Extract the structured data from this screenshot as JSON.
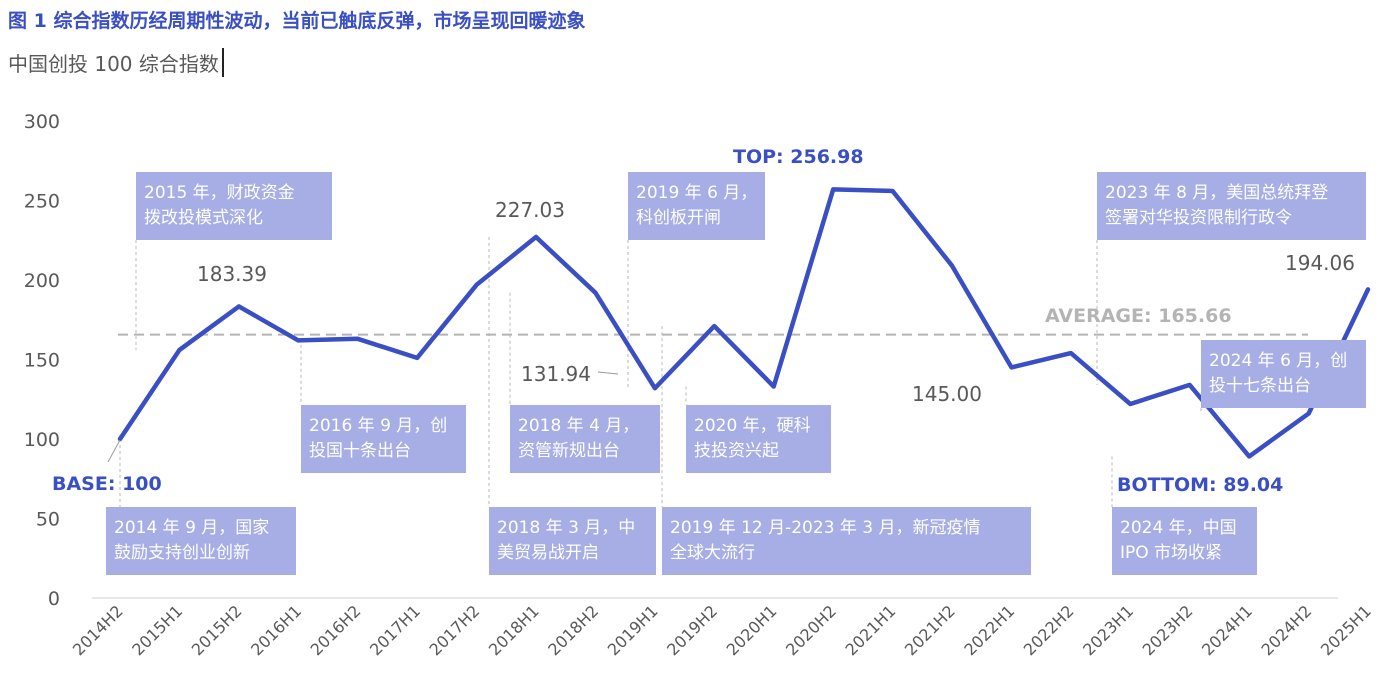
{
  "title": "图 1 综合指数历经周期性波动，当前已触底反弹，市场呈现回暖迹象",
  "subtitle": "中国创投 100 综合指数",
  "chart_data": {
    "type": "line",
    "categories": [
      "2014H2",
      "2015H1",
      "2015H2",
      "2016H1",
      "2016H2",
      "2017H1",
      "2017H2",
      "2018H1",
      "2018H2",
      "2019H1",
      "2019H2",
      "2020H1",
      "2020H2",
      "2021H1",
      "2021H2",
      "2022H1",
      "2022H2",
      "2023H1",
      "2023H2",
      "2024H1",
      "2024H2",
      "2025H1"
    ],
    "x": [
      "2014H2",
      "2014H2.5",
      "2015H1",
      "2015H1.5",
      "2015H2",
      "2015H2.5",
      "2016H1",
      "2016H1.5",
      "2016H2",
      "2016H2.5",
      "2017H1",
      "2017H1.5",
      "2017H2",
      "2017H2.5",
      "2018H1",
      "2018H1.5",
      "2018H2",
      "2018H2.5",
      "2019H1",
      "2019H1.5",
      "2019H2",
      "2019H2.5",
      "2020H1",
      "2020H1.5",
      "2020H2",
      "2020H2.5",
      "2021H1",
      "2021H1.5",
      "2021H2",
      "2021H2.5",
      "2022H1",
      "2022H1.5",
      "2022H2",
      "2022H2.5",
      "2023H1",
      "2023H1.5",
      "2023H2",
      "2023H2.5",
      "2024H1",
      "2024H1.5",
      "2024H2",
      "2024H2.5",
      "2025H1"
    ],
    "values": [
      100,
      156,
      183.39,
      162,
      163,
      151,
      197,
      227.03,
      192,
      131.94,
      171,
      133,
      256.98,
      256,
      209,
      145.0,
      154,
      122,
      134,
      89.04,
      116,
      194.06
    ],
    "series": [
      {
        "values": [
          100,
          156,
          183.39,
          162,
          163,
          151,
          197,
          227.03,
          192,
          131.94,
          171,
          133,
          256.98,
          256,
          209,
          145.0,
          154,
          122,
          134,
          89.04,
          116,
          194.06
        ]
      }
    ],
    "ylim": [
      0,
      300
    ],
    "yticks": [
      "0",
      "50",
      "100",
      "150",
      "200",
      "250",
      "300"
    ],
    "average": 165.66,
    "colors": {
      "line": "#3a4fc4",
      "average": "#b4b4b4",
      "box": "#a7aee6"
    },
    "data_labels": [
      {
        "idx": 2,
        "text": "183.39"
      },
      {
        "idx": 7,
        "text": "227.03"
      },
      {
        "idx": 9,
        "text": "131.94"
      },
      {
        "idx": 15,
        "text": "145.00"
      },
      {
        "idx": 21,
        "text": "194.06"
      }
    ],
    "highlight_labels": [
      {
        "idx": 0,
        "text": "BASE: 100"
      },
      {
        "idx": 12,
        "text": "TOP: 256.98"
      },
      {
        "idx": 19,
        "text": "BOTTOM: 89.04"
      }
    ],
    "average_label": "AVERAGE: 165.66",
    "annotations": [
      {
        "anchor": 0,
        "lines": [
          "2014 年 9 月，国家",
          "鼓励支持创业创新"
        ]
      },
      {
        "anchor": 1,
        "lines": [
          "2015 年，财政资金",
          "拨改投模式深化"
        ]
      },
      {
        "anchor": 4,
        "lines": [
          "2016 年 9 月，创",
          "投国十条出台"
        ]
      },
      {
        "anchor": 7,
        "lines": [
          "2018 年 3 月，中",
          "美贸易战开启"
        ]
      },
      {
        "anchor": 8,
        "lines": [
          "2018 年 4 月，",
          "资管新规出台"
        ]
      },
      {
        "anchor": 9,
        "lines": [
          "2019 年 6 月，",
          "科创板开闸"
        ]
      },
      {
        "anchor": 10,
        "lines": [
          "2019 年 12 月-2023 年 3 月，新冠疫情",
          "全球大流行"
        ]
      },
      {
        "anchor": 11,
        "lines": [
          "2020 年，硬科",
          "技投资兴起"
        ]
      },
      {
        "anchor": 18,
        "lines": [
          "2023 年 8 月，美国总统拜登",
          "签署对华投资限制行政令"
        ]
      },
      {
        "anchor": 19,
        "lines": [
          "2024 年，中国",
          "IPO 市场收紧"
        ]
      },
      {
        "anchor": 20,
        "lines": [
          "2024 年 6 月，创",
          "投十七条出台"
        ]
      }
    ]
  }
}
